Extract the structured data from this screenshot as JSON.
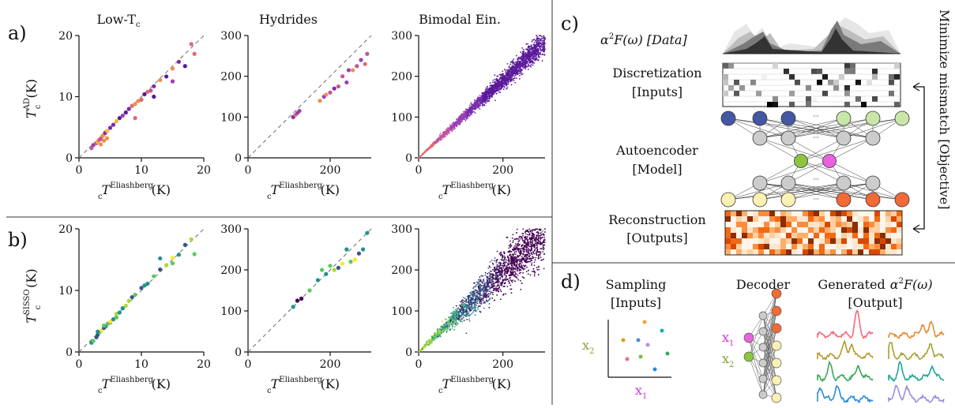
{
  "panels": {
    "a": "a)",
    "b": "b)",
    "c": "c)",
    "d": "d)"
  },
  "columns": {
    "low": "Low-T",
    "low_sub": "c",
    "hydrides": "Hydrides",
    "bimodal": "Bimodal Ein."
  },
  "ylabels": {
    "top": "T",
    "top_sup": "AD",
    "bottom": "T",
    "bottom_sup": "SISSO",
    "sub": "c",
    "unit": "(K)"
  },
  "xlabel": {
    "main": "T",
    "sup": "Eliashberg",
    "sub": "c",
    "unit": "(K)"
  },
  "chart_data": [
    {
      "type": "scatter",
      "panel": "a",
      "column": "Low-Tc",
      "xlim": [
        0,
        20
      ],
      "ylim": [
        0,
        20
      ],
      "xticks": [
        "0",
        "10",
        "20"
      ],
      "yticks": [
        "0",
        "10",
        "20"
      ],
      "x": [
        2,
        2.3,
        2.8,
        3,
        3.2,
        3.5,
        3.8,
        4,
        4.2,
        4.5,
        5,
        5.5,
        6,
        6.5,
        7,
        7.5,
        8,
        8.5,
        9,
        9.5,
        10,
        10.5,
        11,
        11.5,
        12,
        13,
        14,
        15,
        16,
        17,
        18,
        18.5,
        3.5,
        4,
        4.5,
        9,
        12,
        15
      ],
      "y": [
        1.6,
        2.1,
        2.4,
        2.6,
        2.9,
        3.1,
        3.6,
        3.8,
        4.1,
        4.4,
        4.9,
        5.4,
        6,
        6.5,
        6.9,
        7.4,
        8,
        8.5,
        8.8,
        9.3,
        9.5,
        10.4,
        10.8,
        11,
        11.7,
        12.7,
        13.3,
        14.6,
        15.7,
        15,
        18.6,
        17,
        2.2,
        2.8,
        3.2,
        6.5,
        10,
        12.5
      ]
    },
    {
      "type": "scatter",
      "panel": "a",
      "column": "Hydrides",
      "xlim": [
        0,
        300
      ],
      "ylim": [
        0,
        300
      ],
      "xticks": [
        "0",
        "200"
      ],
      "yticks": [
        "0",
        "100",
        "200",
        "300"
      ],
      "x": [
        110,
        115,
        120,
        125,
        175,
        185,
        190,
        200,
        210,
        220,
        230,
        240,
        245,
        255,
        265,
        275,
        285,
        290
      ],
      "y": [
        100,
        105,
        110,
        115,
        140,
        150,
        155,
        160,
        170,
        175,
        200,
        185,
        215,
        215,
        225,
        240,
        230,
        255
      ]
    },
    {
      "type": "scatter",
      "panel": "a",
      "column": "Bimodal Ein.",
      "xlim": [
        0,
        300
      ],
      "ylim": [
        0,
        300
      ],
      "xticks": [
        "0",
        "200"
      ],
      "yticks": [
        "0",
        "100",
        "200",
        "300"
      ],
      "x": [
        5,
        40,
        80,
        120,
        160,
        200,
        240,
        280,
        300
      ],
      "y": [
        5,
        38,
        78,
        118,
        155,
        195,
        230,
        265,
        285
      ]
    },
    {
      "type": "scatter",
      "panel": "b",
      "column": "Low-Tc",
      "xlim": [
        0,
        20
      ],
      "ylim": [
        0,
        20
      ],
      "xticks": [
        "0",
        "10",
        "20"
      ],
      "yticks": [
        "0",
        "10",
        "20"
      ],
      "x": [
        2,
        2.3,
        2.8,
        3,
        3.3,
        3.6,
        4,
        4.3,
        4.6,
        5,
        5.5,
        6,
        6.5,
        7,
        7.5,
        8,
        8.5,
        9,
        10,
        11,
        12,
        13,
        14,
        15,
        16,
        17,
        18,
        18.5,
        3,
        4,
        5,
        6,
        10.5,
        13,
        15
      ],
      "y": [
        1.5,
        1.8,
        2.4,
        2.8,
        3.2,
        3.5,
        3.9,
        4.2,
        4.6,
        4.8,
        5.3,
        6.2,
        6.4,
        7.1,
        7.5,
        8.3,
        8.9,
        9.3,
        10.4,
        11.1,
        12.3,
        13.4,
        14.1,
        15.3,
        15.8,
        17.4,
        18.3,
        15.9,
        3.3,
        4.3,
        4.9,
        5.6,
        10.8,
        15.2,
        14.4
      ]
    },
    {
      "type": "scatter",
      "panel": "b",
      "column": "Hydrides",
      "xlim": [
        0,
        300
      ],
      "ylim": [
        0,
        300
      ],
      "xticks": [
        "0",
        "200"
      ],
      "yticks": [
        "0",
        "100",
        "200",
        "300"
      ],
      "x": [
        110,
        120,
        130,
        150,
        170,
        180,
        190,
        200,
        210,
        220,
        230,
        240,
        250,
        260,
        270,
        280,
        290
      ],
      "y": [
        110,
        125,
        130,
        150,
        175,
        200,
        190,
        210,
        200,
        205,
        215,
        250,
        220,
        225,
        240,
        250,
        290
      ]
    },
    {
      "type": "scatter",
      "panel": "b",
      "column": "Bimodal Ein.",
      "xlim": [
        0,
        300
      ],
      "ylim": [
        0,
        300
      ],
      "xticks": [
        "0",
        "200"
      ],
      "yticks": [
        "0",
        "100",
        "200",
        "300"
      ],
      "x": [
        5,
        40,
        80,
        120,
        160,
        200,
        240,
        280,
        300
      ],
      "y": [
        5,
        40,
        82,
        122,
        160,
        200,
        238,
        272,
        290
      ]
    }
  ],
  "c": {
    "alpha_label": "α",
    "alpha_sup": "2",
    "alpha_rest": "F(ω) [Data]",
    "disc1": "Discretization",
    "disc2": "[Inputs]",
    "ae1": "Autoencoder",
    "ae2": "[Model]",
    "rec1": "Reconstruction",
    "rec2": "[Outputs]",
    "side": "Minimize mismatch [Objective]",
    "dots": "···"
  },
  "d": {
    "samp1": "Sampling",
    "samp2": "[Inputs]",
    "decoder": "Decoder",
    "gen1": "Generated",
    "gen_alpha": "α",
    "gen_sup": "2",
    "gen_rest": "F(ω)",
    "gen2": "[Output]",
    "x1": "x",
    "x2": "x",
    "s1": "1",
    "s2": "2"
  },
  "colors": {
    "purple": "#4b1d91",
    "orange": "#f7a72b",
    "teal": "#2b7a8f",
    "yellow": "#e1e62a",
    "latent1": "#8cc63f",
    "latent2": "#e763e0",
    "node_blue": "#4557a3",
    "node_green": "#c9e6a8",
    "node_gray": "#cccccc",
    "node_yellow": "#fbf1b3",
    "node_orange": "#f26a36"
  }
}
